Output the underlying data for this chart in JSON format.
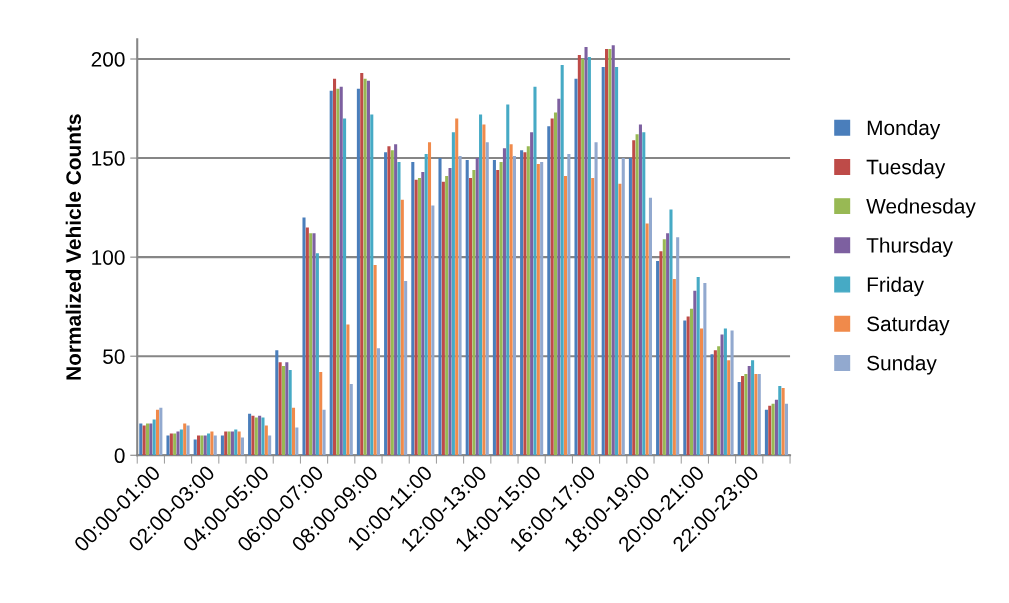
{
  "chart_data": {
    "type": "bar",
    "ylabel": "Normalized Vehicle Counts",
    "categories": [
      "00:00-01:00",
      null,
      "02:00-03:00",
      null,
      "04:00-05:00",
      null,
      "06:00-07:00",
      null,
      "08:00-09:00",
      null,
      "10:00-11:00",
      null,
      "12:00-13:00",
      null,
      "14:00-15:00",
      null,
      "16:00-17:00",
      null,
      "18:00-19:00",
      null,
      "20:00-21:00",
      null,
      "22:00-23:00",
      null
    ],
    "series": [
      {
        "name": "Monday",
        "color": "#4a7ebb",
        "values": [
          16,
          10,
          8,
          10,
          21,
          53,
          120,
          184,
          185,
          153,
          148,
          150,
          149,
          149,
          154,
          166,
          190,
          196,
          150,
          98,
          68,
          51,
          37,
          23
        ]
      },
      {
        "name": "Tuesday",
        "color": "#be4b48",
        "values": [
          15,
          11,
          10,
          12,
          20,
          47,
          115,
          190,
          193,
          156,
          139,
          138,
          140,
          144,
          153,
          170,
          202,
          205,
          159,
          103,
          70,
          53,
          40,
          25
        ]
      },
      {
        "name": "Wednesday",
        "color": "#98b954",
        "values": [
          16,
          11,
          10,
          12,
          19,
          45,
          112,
          185,
          190,
          154,
          140,
          141,
          144,
          148,
          156,
          173,
          200,
          205,
          162,
          109,
          74,
          55,
          41,
          26
        ]
      },
      {
        "name": "Thursday",
        "color": "#7d60a0",
        "values": [
          16,
          12,
          10,
          12,
          20,
          47,
          112,
          186,
          189,
          157,
          143,
          145,
          150,
          155,
          163,
          180,
          206,
          207,
          167,
          112,
          83,
          61,
          45,
          28
        ]
      },
      {
        "name": "Friday",
        "color": "#46aac5",
        "values": [
          18,
          13,
          11,
          13,
          19,
          43,
          102,
          170,
          172,
          148,
          152,
          163,
          172,
          177,
          186,
          197,
          201,
          196,
          163,
          124,
          90,
          64,
          48,
          35
        ]
      },
      {
        "name": "Saturday",
        "color": "#f08a4b",
        "values": [
          23,
          16,
          12,
          12,
          15,
          24,
          42,
          66,
          96,
          129,
          158,
          170,
          167,
          157,
          147,
          141,
          140,
          137,
          117,
          89,
          64,
          48,
          41,
          34
        ]
      },
      {
        "name": "Sunday",
        "color": "#92a9cf",
        "values": [
          24,
          15,
          10,
          9,
          10,
          14,
          23,
          36,
          54,
          88,
          126,
          151,
          158,
          151,
          148,
          152,
          158,
          150,
          130,
          110,
          87,
          63,
          41,
          26
        ]
      }
    ],
    "ylim": [
      0,
      210
    ],
    "yticks": [
      0,
      50,
      100,
      150,
      200
    ],
    "grid": "y",
    "legend": "right"
  }
}
